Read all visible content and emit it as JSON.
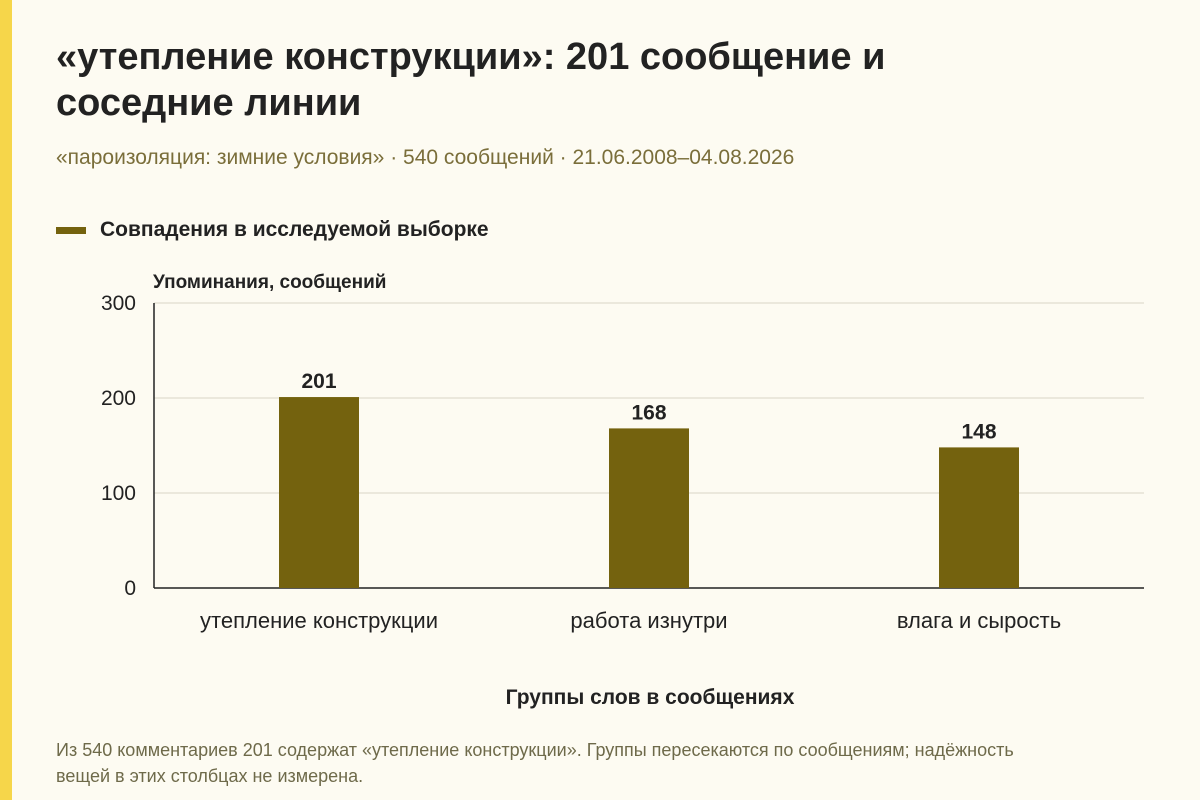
{
  "title": "«утепление конструкции»: 201 сообщение и соседние линии",
  "subtitle": "«пароизоляция: зимние условия» · 540 сообщений · 21.06.2008–04.08.2026",
  "note": "Из 540 комментариев 201 содержат «утепление конструкции». Группы пересекаются по сообщениям; надёжность вещей в этих столбцах не измерена.",
  "colors": {
    "bar": "#74620e",
    "grid": "#d9d6c6",
    "axis": "#222222",
    "accent": "#f6d64a",
    "background": "#fdfbf2"
  },
  "chart_data": {
    "type": "bar",
    "categories": [
      "утепление конструкции",
      "работа изнутри",
      "влага и сырость"
    ],
    "series": [
      {
        "name": "Совпадения в исследуемой выборке",
        "values": [
          201,
          168,
          148
        ]
      }
    ],
    "ylabel": "Упоминания, сообщений",
    "xlabel": "Группы слов в сообщениях",
    "ylim": [
      0,
      300
    ],
    "yticks": [
      0,
      100,
      200,
      300
    ],
    "grid": true,
    "legend": "top-left",
    "data_labels": true
  }
}
